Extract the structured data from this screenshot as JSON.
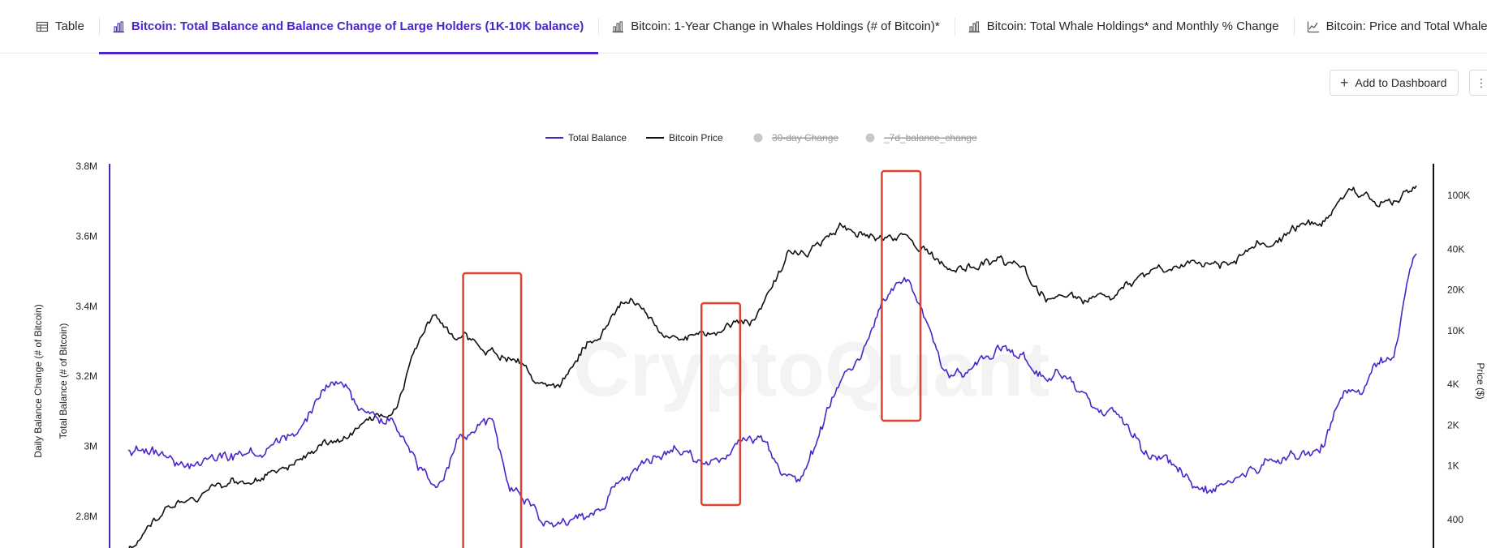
{
  "tabs": [
    {
      "label": "Table",
      "icon": "table-icon",
      "active": false
    },
    {
      "label": "Bitcoin: Total Balance and Balance Change of Large Holders (1K-10K balance)",
      "icon": "bar-chart-icon",
      "active": true
    },
    {
      "label": "Bitcoin: 1-Year Change in Whales Holdings (# of Bitcoin)*",
      "icon": "bar-chart-icon",
      "active": false
    },
    {
      "label": "Bitcoin: Total Whale Holdings* and Monthly % Change",
      "icon": "bar-chart-icon",
      "active": false
    },
    {
      "label": "Bitcoin: Price and Total Whale Holdings",
      "icon": "line-chart-icon",
      "active": false
    }
  ],
  "toolbar": {
    "add_to_dashboard": "Add to Dashboard",
    "more": "⋮"
  },
  "watermark": "CryptoQuant",
  "colors": {
    "accent": "#4b25c9",
    "total_balance": "#4b25c9",
    "bitcoin_price": "#111111",
    "highlight_box": "#d9432f",
    "legend_disabled": "#c8c8c8"
  },
  "chart_data": {
    "type": "line",
    "legend": [
      {
        "name": "Total Balance",
        "color": "#4b25c9",
        "enabled": true
      },
      {
        "name": "Bitcoin Price",
        "color": "#111111",
        "enabled": true
      },
      {
        "name": "30-day Change",
        "color": "#c8c8c8",
        "enabled": false
      },
      {
        "name": "_7d_balance_change",
        "color": "#c8c8c8",
        "enabled": false
      }
    ],
    "legend_position": "top-center",
    "grid": false,
    "left_axis_labels": [
      "Daily Balance Change (# of Bitcoin)",
      "Total Balance (# of Bitcoin)"
    ],
    "right_axis_label": "Price ($)",
    "left_ticks": [
      "3.8M",
      "3.6M",
      "3.4M",
      "3.2M",
      "3M",
      "2.8M"
    ],
    "left_tick_values": [
      3800000,
      3600000,
      3400000,
      3200000,
      3000000,
      2800000
    ],
    "right_ticks": [
      "100K",
      "40K",
      "20K",
      "10K",
      "4K",
      "2K",
      "1K",
      "400"
    ],
    "right_tick_values": [
      100000,
      40000,
      20000,
      10000,
      4000,
      2000,
      1000,
      400
    ],
    "right_scale": "log",
    "ylim_left": [
      2690000,
      3800000
    ],
    "ylim_right_log": [
      250,
      170000
    ],
    "x": [
      0,
      4,
      8,
      12,
      16,
      20,
      24,
      26,
      28,
      30,
      33,
      36,
      39,
      42,
      45,
      48,
      52,
      56,
      60,
      64,
      68,
      72,
      76,
      80,
      84,
      88,
      92,
      95,
      98,
      100
    ],
    "series": [
      {
        "name": "Total Balance",
        "values": [
          3000000,
          2960000,
          2980000,
          3020000,
          3180000,
          3060000,
          2900000,
          3020000,
          3060000,
          2880000,
          2760000,
          2810000,
          2930000,
          2990000,
          2940000,
          3020000,
          2920000,
          3210000,
          3480000,
          3200000,
          3280000,
          3220000,
          3100000,
          2950000,
          2880000,
          2940000,
          2970000,
          3170000,
          3250000,
          3550000
        ]
      },
      {
        "name": "Bitcoin Price",
        "values": [
          250,
          540,
          700,
          940,
          1450,
          2400,
          12000,
          9000,
          7100,
          6200,
          3500,
          8200,
          16000,
          9400,
          9200,
          11500,
          40000,
          57000,
          48000,
          30000,
          32000,
          18000,
          17000,
          28000,
          30000,
          45000,
          63000,
          100000,
          85000,
          118000
        ]
      }
    ],
    "highlights": [
      {
        "from_x": 26,
        "to_x": 30.5,
        "series": "Total Balance"
      },
      {
        "from_x": 44.5,
        "to_x": 47.5,
        "series": "Total Balance"
      },
      {
        "from_x": 58.5,
        "to_x": 61.5,
        "series": "Total Balance"
      }
    ]
  }
}
